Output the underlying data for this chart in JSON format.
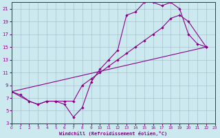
{
  "xlabel": "Windchill (Refroidissement éolien,°C)",
  "background_color": "#cde9f0",
  "grid_color": "#a0b8c8",
  "line_color": "#880088",
  "xmin": 0,
  "xmax": 23,
  "ymin": 3,
  "ymax": 22,
  "yticks": [
    3,
    5,
    7,
    9,
    11,
    13,
    15,
    17,
    19,
    21
  ],
  "xticks": [
    0,
    1,
    2,
    3,
    4,
    5,
    6,
    7,
    8,
    9,
    10,
    11,
    12,
    13,
    14,
    15,
    16,
    17,
    18,
    19,
    20,
    21,
    22,
    23
  ],
  "line1_x": [
    0,
    1,
    2,
    3,
    4,
    5,
    6,
    7,
    8,
    9,
    10,
    11,
    12,
    13,
    14,
    15,
    16,
    17,
    18,
    19,
    20,
    21,
    22
  ],
  "line1_y": [
    8,
    7.5,
    6.5,
    6,
    6.5,
    6.5,
    6,
    4,
    5.5,
    9.5,
    11.5,
    13,
    14.5,
    20,
    20.5,
    22,
    22,
    21.5,
    22,
    21,
    17,
    15.5,
    15
  ],
  "line2_x": [
    0,
    2,
    3,
    4,
    5,
    6,
    7,
    8,
    9,
    10,
    11,
    12,
    13,
    14,
    15,
    16,
    17,
    18,
    19,
    20,
    22
  ],
  "line2_y": [
    8,
    6.5,
    6,
    6.5,
    6.5,
    6.5,
    6.5,
    9,
    10,
    11,
    12,
    13,
    14,
    15,
    16,
    17,
    18,
    19.5,
    20,
    19,
    15
  ],
  "line3_x": [
    0,
    22
  ],
  "line3_y": [
    8,
    15
  ]
}
